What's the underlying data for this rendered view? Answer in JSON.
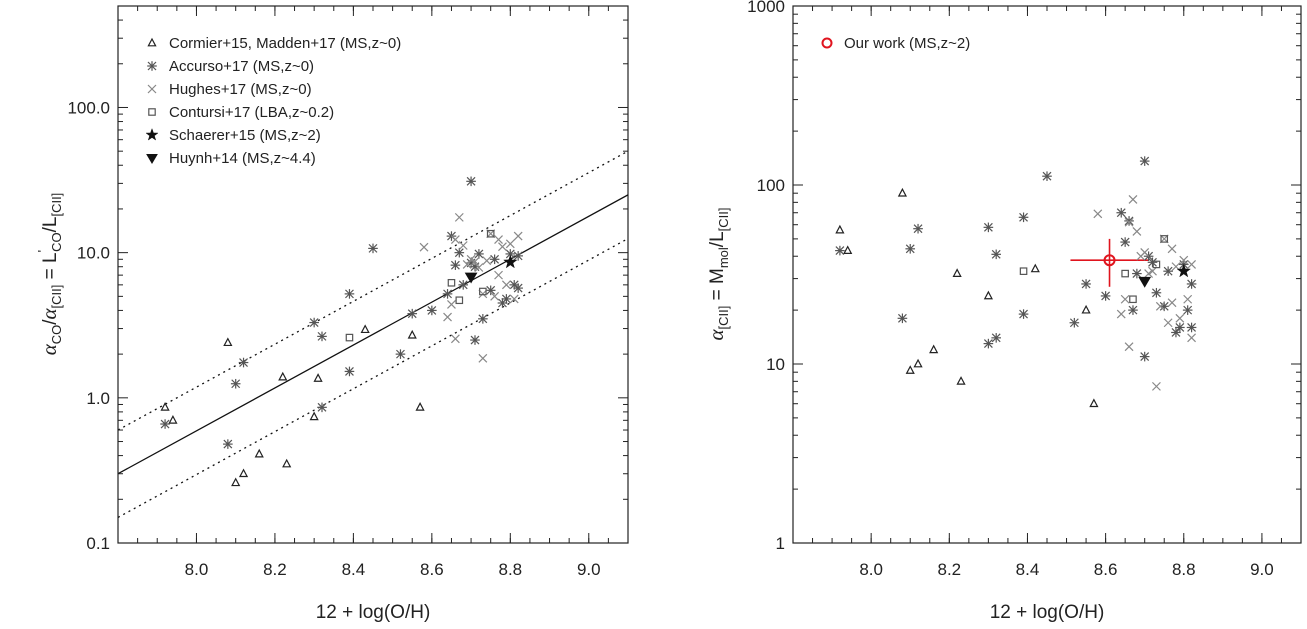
{
  "chart_data": [
    {
      "type": "scatter",
      "log_y": true,
      "xlim": [
        7.8,
        9.1
      ],
      "ylim": [
        0.1,
        500
      ],
      "xticks": [
        "8.0",
        "8.2",
        "8.4",
        "8.6",
        "8.8",
        "9.0"
      ],
      "yticks": [
        "0.1",
        "1.0",
        "10.0",
        "100.0"
      ],
      "xlabel": "12 + log(O/H)",
      "ylabel": "αCO/α[CII] = L'CO/L[CII]",
      "legend_position": "top-left",
      "series": [
        {
          "name": "Cormier+15, Madden+17 (MS,z~0)",
          "marker": "triangle",
          "color": "#222222",
          "points": [
            [
              7.92,
              0.86
            ],
            [
              7.94,
              0.7
            ],
            [
              8.08,
              2.4
            ],
            [
              8.1,
              0.26
            ],
            [
              8.12,
              0.3
            ],
            [
              8.16,
              0.41
            ],
            [
              8.22,
              1.39
            ],
            [
              8.23,
              0.35
            ],
            [
              8.3,
              0.74
            ],
            [
              8.31,
              1.36
            ],
            [
              8.43,
              2.95
            ],
            [
              8.55,
              2.7
            ],
            [
              8.57,
              0.86
            ]
          ]
        },
        {
          "name": "Accurso+17 (MS,z~0)",
          "marker": "asterisk",
          "color": "#555555",
          "points": [
            [
              7.92,
              0.66
            ],
            [
              8.08,
              0.48
            ],
            [
              8.1,
              1.25
            ],
            [
              8.12,
              1.75
            ],
            [
              8.3,
              3.3
            ],
            [
              8.32,
              2.65
            ],
            [
              8.32,
              0.86
            ],
            [
              8.39,
              5.2
            ],
            [
              8.39,
              1.52
            ],
            [
              8.45,
              10.7
            ],
            [
              8.52,
              2.0
            ],
            [
              8.55,
              3.8
            ],
            [
              8.6,
              4.0
            ],
            [
              8.64,
              5.2
            ],
            [
              8.65,
              13.0
            ],
            [
              8.66,
              8.2
            ],
            [
              8.67,
              10.0
            ],
            [
              8.68,
              6.0
            ],
            [
              8.7,
              31.0
            ],
            [
              8.7,
              8.5
            ],
            [
              8.71,
              2.5
            ],
            [
              8.71,
              8.0
            ],
            [
              8.72,
              9.8
            ],
            [
              8.73,
              3.5
            ],
            [
              8.75,
              5.5
            ],
            [
              8.76,
              9.0
            ],
            [
              8.78,
              4.5
            ],
            [
              8.79,
              4.8
            ],
            [
              8.8,
              9.8
            ],
            [
              8.81,
              6.0
            ],
            [
              8.82,
              9.5
            ],
            [
              8.82,
              5.7
            ]
          ]
        },
        {
          "name": "Hughes+17 (MS,z~0)",
          "marker": "x",
          "color": "#888888",
          "points": [
            [
              8.58,
              10.9
            ],
            [
              8.64,
              3.6
            ],
            [
              8.65,
              4.4
            ],
            [
              8.66,
              12.3
            ],
            [
              8.66,
              2.55
            ],
            [
              8.67,
              17.5
            ],
            [
              8.68,
              11.2
            ],
            [
              8.69,
              8.3
            ],
            [
              8.7,
              9.0
            ],
            [
              8.71,
              8.7
            ],
            [
              8.72,
              7.9
            ],
            [
              8.73,
              1.87
            ],
            [
              8.73,
              5.2
            ],
            [
              8.74,
              8.8
            ],
            [
              8.75,
              13.5
            ],
            [
              8.76,
              5.0
            ],
            [
              8.77,
              7.0
            ],
            [
              8.77,
              12.3
            ],
            [
              8.78,
              11.0
            ],
            [
              8.79,
              6.0
            ],
            [
              8.8,
              11.5
            ],
            [
              8.81,
              4.8
            ],
            [
              8.82,
              13.0
            ]
          ]
        },
        {
          "name": "Contursi+17 (LBA,z~0.2)",
          "marker": "square",
          "color": "#555555",
          "points": [
            [
              8.39,
              2.6
            ],
            [
              8.65,
              6.2
            ],
            [
              8.67,
              4.7
            ],
            [
              8.73,
              5.4
            ],
            [
              8.75,
              13.5
            ]
          ]
        },
        {
          "name": "Schaerer+15 (MS,z~2)",
          "marker": "star",
          "color": "#111111",
          "points": [
            [
              8.8,
              8.6
            ]
          ]
        },
        {
          "name": "Huynh+14 (MS,z~4.4)",
          "marker": "down-triangle",
          "color": "#111111",
          "points": [
            [
              8.7,
              6.8
            ]
          ]
        }
      ],
      "lines": [
        {
          "style": "solid",
          "from": [
            7.8,
            0.3
          ],
          "to": [
            9.1,
            25.0
          ]
        },
        {
          "style": "dotted",
          "from": [
            7.8,
            0.6
          ],
          "to": [
            9.1,
            50.0
          ]
        },
        {
          "style": "dotted",
          "from": [
            7.8,
            0.15
          ],
          "to": [
            9.1,
            12.5
          ]
        }
      ]
    },
    {
      "type": "scatter",
      "log_y": true,
      "xlim": [
        7.8,
        9.1
      ],
      "ylim": [
        1,
        1000
      ],
      "xticks": [
        "8.0",
        "8.2",
        "8.4",
        "8.6",
        "8.8",
        "9.0"
      ],
      "yticks": [
        "1",
        "10",
        "100",
        "1000"
      ],
      "xlabel": "12 + log(O/H)",
      "ylabel": "α[CII] = Mmol/L[CII]",
      "legend_position": "top-left",
      "series": [
        {
          "name": "Our work (MS,z~2)",
          "marker": "circle",
          "color": "#e0141e",
          "points": [
            [
              8.61,
              38.0
            ]
          ],
          "errorbars": {
            "xerr": 0.1,
            "ylow": 27.0,
            "yhigh": 50.0
          }
        },
        {
          "name": "",
          "marker": "triangle",
          "color": "#222222",
          "points": [
            [
              7.92,
              56.0
            ],
            [
              7.94,
              43.0
            ],
            [
              8.08,
              90.0
            ],
            [
              8.1,
              9.2
            ],
            [
              8.12,
              10.0
            ],
            [
              8.16,
              12.0
            ],
            [
              8.22,
              32.0
            ],
            [
              8.23,
              8.0
            ],
            [
              8.3,
              24.0
            ],
            [
              8.42,
              34.0
            ],
            [
              8.55,
              20.0
            ],
            [
              8.57,
              6.0
            ]
          ]
        },
        {
          "name": "",
          "marker": "asterisk",
          "color": "#555555",
          "points": [
            [
              7.92,
              43.0
            ],
            [
              8.08,
              18.0
            ],
            [
              8.1,
              44.0
            ],
            [
              8.12,
              57.0
            ],
            [
              8.3,
              58.0
            ],
            [
              8.3,
              13.0
            ],
            [
              8.32,
              41.0
            ],
            [
              8.32,
              14.0
            ],
            [
              8.39,
              66.0
            ],
            [
              8.39,
              19.0
            ],
            [
              8.45,
              112.0
            ],
            [
              8.52,
              17.0
            ],
            [
              8.55,
              28.0
            ],
            [
              8.6,
              24.0
            ],
            [
              8.64,
              70.0
            ],
            [
              8.65,
              48.0
            ],
            [
              8.66,
              63.0
            ],
            [
              8.67,
              20.0
            ],
            [
              8.68,
              32.0
            ],
            [
              8.7,
              136.0
            ],
            [
              8.7,
              11.0
            ],
            [
              8.71,
              40.0
            ],
            [
              8.72,
              37.0
            ],
            [
              8.73,
              25.0
            ],
            [
              8.75,
              21.0
            ],
            [
              8.76,
              33.0
            ],
            [
              8.78,
              15.0
            ],
            [
              8.79,
              16.0
            ],
            [
              8.8,
              36.0
            ],
            [
              8.81,
              20.0
            ],
            [
              8.82,
              28.0
            ],
            [
              8.82,
              16.0
            ]
          ]
        },
        {
          "name": "",
          "marker": "x",
          "color": "#888888",
          "points": [
            [
              8.58,
              69.0
            ],
            [
              8.64,
              19.0
            ],
            [
              8.65,
              23.0
            ],
            [
              8.66,
              62.0
            ],
            [
              8.66,
              12.5
            ],
            [
              8.67,
              83.0
            ],
            [
              8.68,
              55.0
            ],
            [
              8.69,
              40.0
            ],
            [
              8.7,
              42.0
            ],
            [
              8.71,
              32.0
            ],
            [
              8.72,
              33.0
            ],
            [
              8.73,
              7.5
            ],
            [
              8.74,
              21.0
            ],
            [
              8.75,
              50.0
            ],
            [
              8.76,
              17.0
            ],
            [
              8.77,
              22.0
            ],
            [
              8.77,
              44.0
            ],
            [
              8.78,
              35.0
            ],
            [
              8.79,
              18.0
            ],
            [
              8.8,
              38.0
            ],
            [
              8.81,
              23.0
            ],
            [
              8.82,
              14.0
            ],
            [
              8.82,
              36.0
            ]
          ]
        },
        {
          "name": "",
          "marker": "square",
          "color": "#555555",
          "points": [
            [
              8.39,
              33.0
            ],
            [
              8.65,
              32.0
            ],
            [
              8.67,
              23.0
            ],
            [
              8.73,
              36.0
            ],
            [
              8.75,
              50.0
            ]
          ]
        },
        {
          "name": "",
          "marker": "star",
          "color": "#111111",
          "points": [
            [
              8.8,
              33.0
            ]
          ]
        },
        {
          "name": "",
          "marker": "down-triangle",
          "color": "#111111",
          "points": [
            [
              8.7,
              29.0
            ]
          ]
        }
      ]
    }
  ]
}
